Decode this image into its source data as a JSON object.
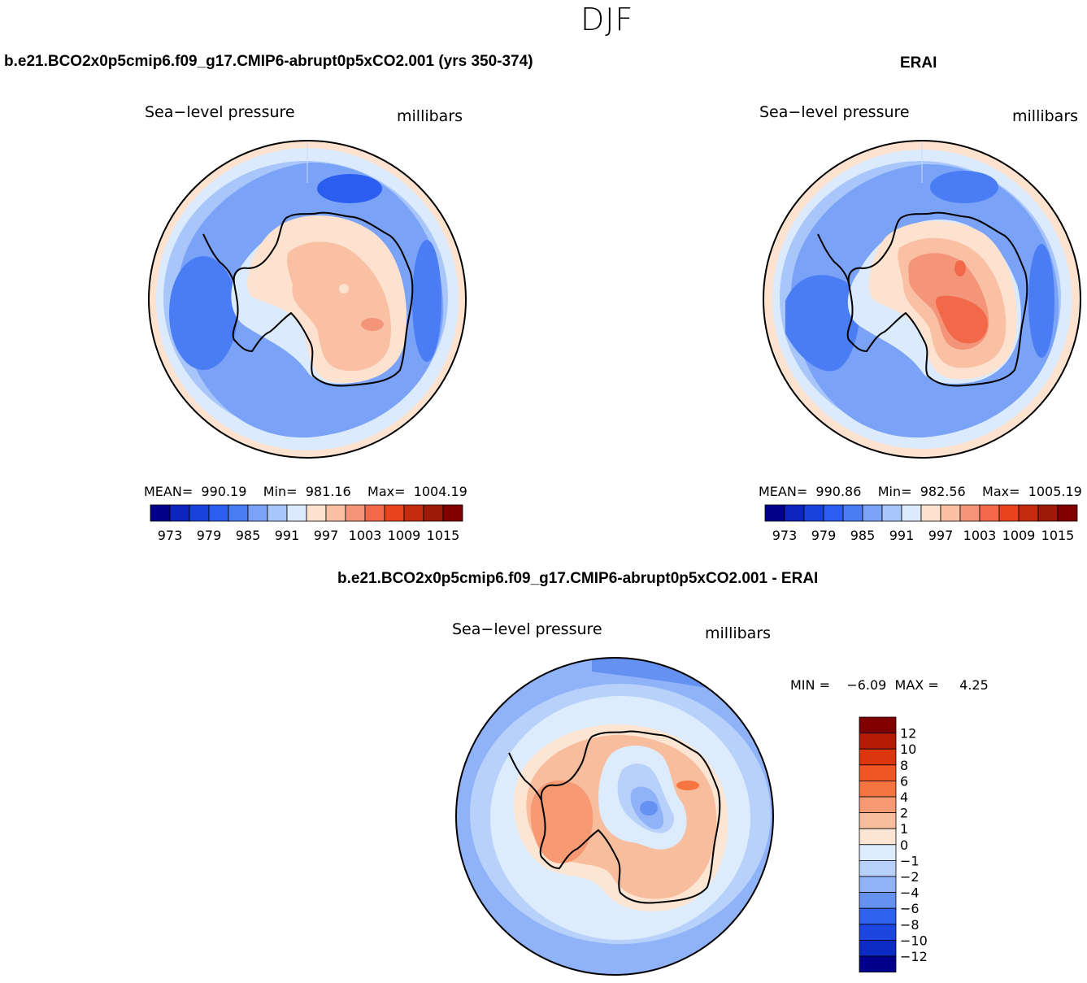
{
  "figure": {
    "season": "DJF",
    "case_title": "b.e21.BCO2x0p5cmip6.f09_g17.CMIP6-abrupt0p5xCO2.001 (yrs 350-374)",
    "obs_title": "ERAI",
    "diff_title": "b.e21.BCO2x0p5cmip6.f09_g17.CMIP6-abrupt0p5xCO2.001 - ERAI"
  },
  "panels": {
    "model": {
      "variable": "Sea−level pressure",
      "units": "millibars",
      "stats_text": "MEAN=  990.19    Min=  981.16    Max=  1004.19"
    },
    "obs": {
      "variable": "Sea−level pressure",
      "units": "millibars",
      "stats_text": "MEAN=  990.86    Min=  982.56    Max=  1005.19"
    },
    "diff": {
      "variable": "Sea−level pressure",
      "units": "millibars",
      "stats_text": "MIN =    −6.09  MAX =     4.25"
    }
  },
  "chart_data": [
    {
      "type": "heatmap",
      "projection": "south-polar-stereographic",
      "title": "b.e21.BCO2x0p5cmip6.f09_g17.CMIP6-abrupt0p5xCO2.001 (yrs 350-374)",
      "variable": "Sea-level pressure",
      "units": "millibars",
      "mean": 990.19,
      "min": 981.16,
      "max": 1004.19,
      "colorbar_labels": [
        "973",
        "979",
        "985",
        "991",
        "997",
        "1003",
        "1009",
        "1015"
      ],
      "colorbar_colors": [
        "#00008b",
        "#0d25be",
        "#1742dc",
        "#2b5ef0",
        "#4a7cf4",
        "#7aa2f7",
        "#a9c6fb",
        "#dbeafd",
        "#fde2cf",
        "#f9c0a3",
        "#f4957a",
        "#f2694a",
        "#e8431d",
        "#c42a0e",
        "#9e1a08",
        "#800000"
      ]
    },
    {
      "type": "heatmap",
      "projection": "south-polar-stereographic",
      "title": "ERAI",
      "variable": "Sea-level pressure",
      "units": "millibars",
      "mean": 990.86,
      "min": 982.56,
      "max": 1005.19,
      "colorbar_labels": [
        "973",
        "979",
        "985",
        "991",
        "997",
        "1003",
        "1009",
        "1015"
      ],
      "colorbar_colors": [
        "#00008b",
        "#0d25be",
        "#1742dc",
        "#2b5ef0",
        "#4a7cf4",
        "#7aa2f7",
        "#a9c6fb",
        "#dbeafd",
        "#fde2cf",
        "#f9c0a3",
        "#f4957a",
        "#f2694a",
        "#e8431d",
        "#c42a0e",
        "#9e1a08",
        "#800000"
      ]
    },
    {
      "type": "heatmap",
      "projection": "south-polar-stereographic",
      "title": "b.e21.BCO2x0p5cmip6.f09_g17.CMIP6-abrupt0p5xCO2.001 - ERAI",
      "variable": "Sea-level pressure",
      "units": "millibars",
      "min": -6.09,
      "max": 4.25,
      "colorbar_labels": [
        "12",
        "10",
        "8",
        "6",
        "4",
        "2",
        "1",
        "0",
        "−1",
        "−2",
        "−4",
        "−6",
        "−8",
        "−10",
        "−12"
      ],
      "colorbar_colors": [
        "#800000",
        "#b51c05",
        "#dc360f",
        "#f05526",
        "#f6743f",
        "#f79a74",
        "#f8bd9d",
        "#fde5d3",
        "#ddecfc",
        "#b7d1fb",
        "#8fb2f8",
        "#6591f3",
        "#2f62ef",
        "#1b46e0",
        "#0c2ac4",
        "#00008b"
      ]
    }
  ],
  "colors": {
    "background": "#ffffff",
    "coastline": "#000000"
  }
}
